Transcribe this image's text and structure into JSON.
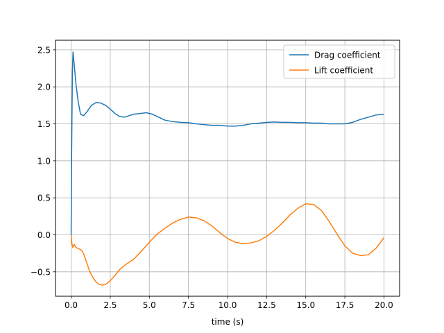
{
  "chart_data": {
    "type": "line",
    "title": "",
    "xlabel": "time (s)",
    "ylabel": "",
    "xlim": [
      -1.0,
      21.0
    ],
    "ylim": [
      -0.83,
      2.63
    ],
    "xticks": [
      0.0,
      2.5,
      5.0,
      7.5,
      10.0,
      12.5,
      15.0,
      17.5,
      20.0
    ],
    "xtick_labels": [
      "0.0",
      "2.5",
      "5.0",
      "7.5",
      "10.0",
      "12.5",
      "15.0",
      "17.5",
      "20.0"
    ],
    "yticks": [
      -0.5,
      0.0,
      0.5,
      1.0,
      1.5,
      2.0,
      2.5
    ],
    "ytick_labels": [
      "−0.5",
      "0.0",
      "0.5",
      "1.0",
      "1.5",
      "2.0",
      "2.5"
    ],
    "grid": true,
    "legend_position": "top-right",
    "series": [
      {
        "name": "Drag coefficient",
        "color": "#1f77b4",
        "x": [
          0.0,
          0.02,
          0.05,
          0.08,
          0.12,
          0.2,
          0.3,
          0.45,
          0.6,
          0.8,
          1.0,
          1.3,
          1.6,
          1.9,
          2.2,
          2.5,
          2.8,
          3.1,
          3.4,
          3.7,
          4.0,
          4.4,
          4.8,
          5.2,
          5.6,
          6.0,
          6.5,
          7.0,
          7.5,
          8.0,
          8.5,
          9.0,
          9.5,
          10.0,
          10.5,
          11.0,
          11.5,
          12.0,
          12.5,
          13.0,
          13.5,
          14.0,
          14.5,
          15.0,
          15.5,
          16.0,
          16.5,
          17.0,
          17.5,
          18.0,
          18.5,
          19.0,
          19.5,
          20.0
        ],
        "y": [
          0.0,
          0.8,
          1.5,
          2.2,
          2.47,
          2.3,
          2.05,
          1.8,
          1.63,
          1.61,
          1.66,
          1.75,
          1.79,
          1.78,
          1.75,
          1.7,
          1.64,
          1.6,
          1.59,
          1.61,
          1.63,
          1.64,
          1.65,
          1.63,
          1.59,
          1.55,
          1.53,
          1.52,
          1.515,
          1.5,
          1.49,
          1.48,
          1.48,
          1.47,
          1.47,
          1.48,
          1.5,
          1.51,
          1.52,
          1.525,
          1.52,
          1.52,
          1.515,
          1.515,
          1.51,
          1.51,
          1.5,
          1.5,
          1.5,
          1.52,
          1.56,
          1.59,
          1.62,
          1.63
        ]
      },
      {
        "name": "Lift coefficient",
        "color": "#ff7f0e",
        "x": [
          0.0,
          0.05,
          0.1,
          0.15,
          0.2,
          0.3,
          0.4,
          0.5,
          0.6,
          0.7,
          0.8,
          1.0,
          1.2,
          1.4,
          1.6,
          1.8,
          2.0,
          2.2,
          2.5,
          2.8,
          3.1,
          3.5,
          4.0,
          4.5,
          5.0,
          5.5,
          6.0,
          6.5,
          7.0,
          7.5,
          8.0,
          8.5,
          9.0,
          9.5,
          10.0,
          10.5,
          11.0,
          11.5,
          12.0,
          12.5,
          13.0,
          13.5,
          14.0,
          14.5,
          15.0,
          15.5,
          16.0,
          16.5,
          17.0,
          17.5,
          18.0,
          18.5,
          19.0,
          19.5,
          20.0
        ],
        "y": [
          0.0,
          -0.12,
          -0.17,
          -0.14,
          -0.13,
          -0.17,
          -0.18,
          -0.19,
          -0.2,
          -0.22,
          -0.26,
          -0.38,
          -0.5,
          -0.58,
          -0.64,
          -0.67,
          -0.68,
          -0.67,
          -0.62,
          -0.55,
          -0.47,
          -0.4,
          -0.33,
          -0.22,
          -0.1,
          0.01,
          0.09,
          0.16,
          0.21,
          0.24,
          0.23,
          0.19,
          0.12,
          0.03,
          -0.05,
          -0.1,
          -0.12,
          -0.11,
          -0.08,
          -0.02,
          0.06,
          0.16,
          0.27,
          0.36,
          0.42,
          0.41,
          0.33,
          0.18,
          0.01,
          -0.15,
          -0.25,
          -0.28,
          -0.27,
          -0.18,
          -0.04
        ]
      }
    ]
  }
}
